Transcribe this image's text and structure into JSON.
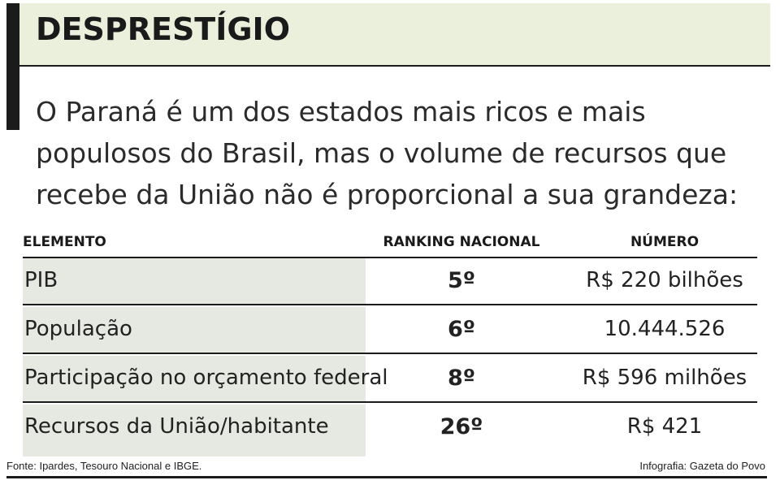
{
  "title": "DESPRESTÍGIO",
  "intro": "O Paraná é um dos estados mais ricos e mais populosos do Brasil, mas o volume de recursos que recebe da União não é proporcional a sua grandeza:",
  "table": {
    "headers": {
      "element": "ELEMENTO",
      "ranking": "RANKING NACIONAL",
      "number": "NÚMERO"
    },
    "rows": [
      {
        "element": "PIB",
        "ranking": "5º",
        "number": "R$ 220 bilhões"
      },
      {
        "element": "População",
        "ranking": "6º",
        "number": "10.444.526"
      },
      {
        "element": "Participação no orçamento federal",
        "ranking": "8º",
        "number": "R$ 596 milhões"
      },
      {
        "element": "Recursos da União/habitante",
        "ranking": "26º",
        "number": "R$ 421"
      }
    ]
  },
  "footer": {
    "source": "Fonte: Ipardes, Tesouro Nacional e IBGE.",
    "credit": "Infografia: Gazeta do Povo"
  },
  "colors": {
    "title_band": "#eaf0dc",
    "row_shade": "#e6e9e1",
    "rules": "#1b1b1b"
  }
}
